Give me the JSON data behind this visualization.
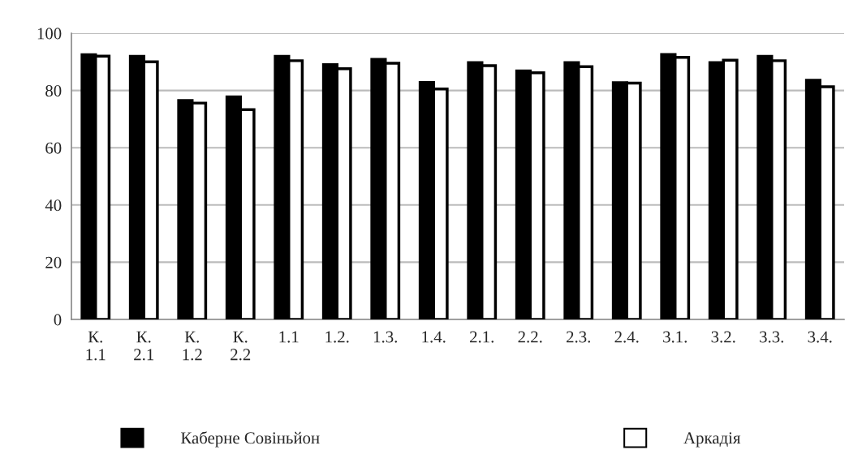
{
  "chart_data": {
    "type": "bar",
    "categories": [
      "К.\n1.1",
      "К.\n2.1",
      "К.\n1.2",
      "К.\n2.2",
      "1.1",
      "1.2.",
      "1.3.",
      "1.4.",
      "2.1.",
      "2.2.",
      "2.3.",
      "2.4.",
      "3.1.",
      "3.2.",
      "3.3.",
      "3.4."
    ],
    "series": [
      {
        "name": "Каберне Совіньйон",
        "color": "#000000",
        "values": [
          92.5,
          91.9,
          76.5,
          77.8,
          91.9,
          89.0,
          90.9,
          82.8,
          89.7,
          86.8,
          89.7,
          82.7,
          92.6,
          89.7,
          91.9,
          83.6
        ]
      },
      {
        "name": "Аркадія",
        "color": "#ffffff",
        "values": [
          92.0,
          90.0,
          75.6,
          73.3,
          90.4,
          87.6,
          89.5,
          80.5,
          88.7,
          86.2,
          88.3,
          82.6,
          91.6,
          90.6,
          90.4,
          81.3
        ]
      }
    ],
    "ylim": [
      0,
      100
    ],
    "yticks": [
      0,
      20,
      40,
      60,
      80,
      100
    ],
    "grid": "y",
    "legend": "bottom"
  }
}
